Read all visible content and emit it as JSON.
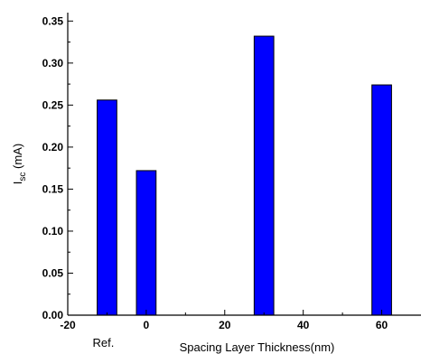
{
  "chart_data": {
    "type": "bar",
    "xlabel": "Spacing Layer Thickness(nm)",
    "ylabel": {
      "main": "I",
      "sub": "sc",
      "unit": " (mA)"
    },
    "xlim": [
      -20,
      70
    ],
    "ylim": [
      0,
      0.36
    ],
    "xticks": [
      -20,
      0,
      20,
      40,
      60
    ],
    "xtick_labels": [
      "-20",
      "0",
      "20",
      "40",
      "60"
    ],
    "yticks": [
      0,
      0.05,
      0.1,
      0.15,
      0.2,
      0.25,
      0.3,
      0.35
    ],
    "ytick_labels": [
      "0.00",
      "0.05",
      "0.10",
      "0.15",
      "0.20",
      "0.25",
      "0.30",
      "0.35"
    ],
    "extra_label": {
      "text": "Ref.",
      "x": -10
    },
    "bar_width": 5,
    "bars": [
      {
        "x": -10,
        "value": 0.256
      },
      {
        "x": 0,
        "value": 0.172
      },
      {
        "x": 30,
        "value": 0.332
      },
      {
        "x": 60,
        "value": 0.274
      }
    ],
    "bar_color": "#0000ff",
    "bar_edge_color": "#000000",
    "grid": false
  }
}
